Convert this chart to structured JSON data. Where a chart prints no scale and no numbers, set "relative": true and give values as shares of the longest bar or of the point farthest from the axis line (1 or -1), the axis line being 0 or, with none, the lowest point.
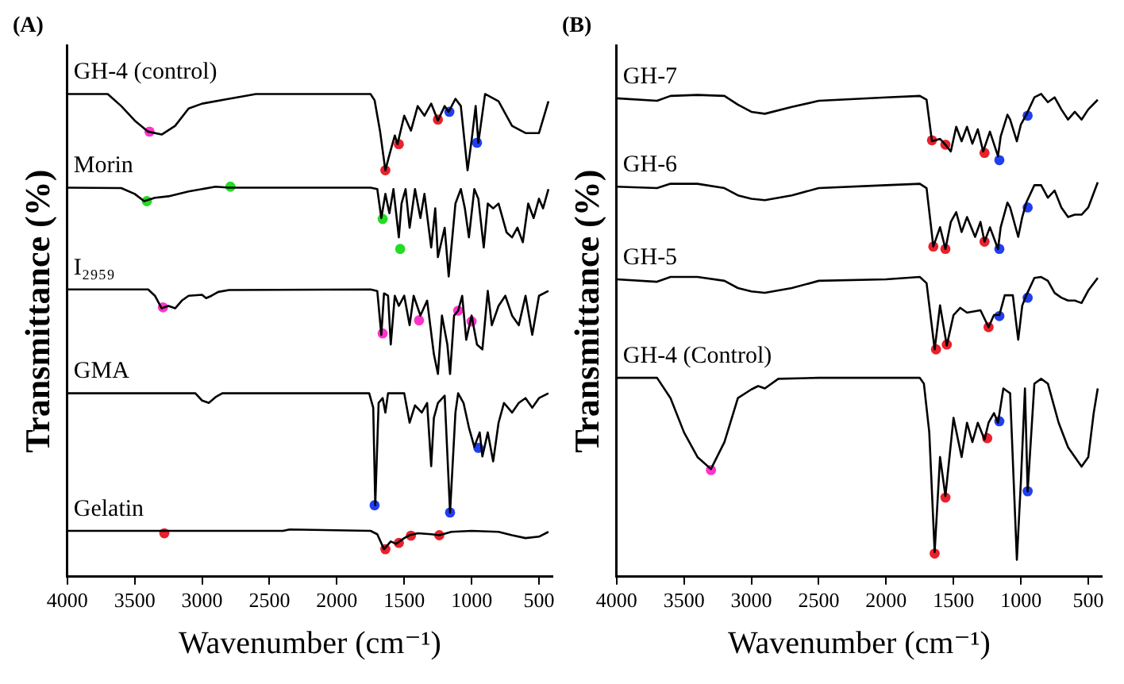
{
  "chart_data": [
    {
      "type": "line",
      "title": "(A)",
      "xlabel": "Wavenumber (cm⁻¹)",
      "ylabel": "Transmittance (%)",
      "relative": true,
      "xlim": [
        4000,
        400
      ],
      "xticks": [
        4000,
        3500,
        3000,
        2500,
        2000,
        1500,
        1000,
        500
      ],
      "tick_labels": "x",
      "legend": false,
      "grid": false,
      "series": [
        {
          "type": "line",
          "name": "GH-4 (control)",
          "color": "#000000",
          "x": [
            4000,
            3700,
            3600,
            3500,
            3400,
            3300,
            3200,
            3100,
            3000,
            2800,
            2600,
            1750,
            1720,
            1680,
            1640,
            1610,
            1570,
            1550,
            1500,
            1450,
            1400,
            1350,
            1300,
            1250,
            1200,
            1170,
            1120,
            1080,
            1030,
            1000,
            970,
            950,
            900,
            800,
            700,
            600,
            500,
            430
          ],
          "values": [
            1,
            1,
            0.975,
            0.945,
            0.922,
            0.916,
            0.934,
            0.97,
            0.98,
            0.99,
            1,
            1,
            0.987,
            0.924,
            0.842,
            0.874,
            0.914,
            0.896,
            0.955,
            0.924,
            0.975,
            0.955,
            0.98,
            0.945,
            0.975,
            0.963,
            0.99,
            0.975,
            0.842,
            0.904,
            0.975,
            0.899,
            1,
            0.985,
            0.934,
            0.919,
            0.919,
            0.985
          ]
        },
        {
          "type": "line",
          "name": "Morin",
          "color": "#000000",
          "x": [
            4000,
            3600,
            3500,
            3430,
            3350,
            3250,
            3100,
            2900,
            2800,
            2000,
            1750,
            1700,
            1670,
            1640,
            1610,
            1580,
            1540,
            1520,
            1490,
            1460,
            1420,
            1380,
            1350,
            1300,
            1270,
            1250,
            1200,
            1170,
            1120,
            1080,
            1050,
            1020,
            980,
            950,
            910,
            880,
            840,
            800,
            740,
            700,
            660,
            620,
            580,
            540,
            500,
            470,
            430
          ],
          "values": [
            0.806,
            0.805,
            0.793,
            0.778,
            0.785,
            0.788,
            0.798,
            0.808,
            0.806,
            0.806,
            0.806,
            0.803,
            0.743,
            0.793,
            0.753,
            0.803,
            0.703,
            0.773,
            0.803,
            0.723,
            0.803,
            0.743,
            0.793,
            0.682,
            0.763,
            0.662,
            0.723,
            0.622,
            0.773,
            0.803,
            0.763,
            0.703,
            0.803,
            0.783,
            0.682,
            0.773,
            0.763,
            0.773,
            0.713,
            0.703,
            0.723,
            0.693,
            0.773,
            0.743,
            0.783,
            0.763,
            0.803
          ]
        },
        {
          "type": "line",
          "name": "I₂₉₅₉",
          "color": "#000000",
          "x": [
            4000,
            3400,
            3350,
            3300,
            3250,
            3200,
            3150,
            3100,
            3000,
            2970,
            2930,
            2880,
            2800,
            1750,
            1700,
            1670,
            1650,
            1620,
            1600,
            1570,
            1540,
            1500,
            1460,
            1430,
            1380,
            1330,
            1280,
            1250,
            1220,
            1180,
            1160,
            1130,
            1100,
            1070,
            1040,
            1000,
            960,
            920,
            880,
            850,
            800,
            750,
            700,
            650,
            600,
            550,
            500,
            430
          ],
          "values": [
            0.595,
            0.595,
            0.582,
            0.556,
            0.561,
            0.556,
            0.572,
            0.582,
            0.584,
            0.577,
            0.582,
            0.59,
            0.594,
            0.595,
            0.592,
            0.501,
            0.587,
            0.582,
            0.481,
            0.582,
            0.561,
            0.582,
            0.521,
            0.582,
            0.541,
            0.572,
            0.461,
            0.42,
            0.541,
            0.481,
            0.42,
            0.541,
            0.551,
            0.582,
            0.491,
            0.541,
            0.481,
            0.471,
            0.592,
            0.521,
            0.561,
            0.582,
            0.541,
            0.521,
            0.582,
            0.501,
            0.582,
            0.592
          ]
        },
        {
          "type": "line",
          "name": "GMA",
          "color": "#000000",
          "x": [
            4000,
            3050,
            3000,
            2950,
            2900,
            2850,
            1760,
            1730,
            1715,
            1690,
            1660,
            1640,
            1620,
            1500,
            1460,
            1420,
            1370,
            1330,
            1300,
            1280,
            1250,
            1200,
            1160,
            1120,
            1100,
            1060,
            1020,
            980,
            940,
            920,
            880,
            840,
            800,
            760,
            700,
            650,
            600,
            550,
            500,
            430
          ],
          "values": [
            0.38,
            0.38,
            0.365,
            0.36,
            0.372,
            0.38,
            0.38,
            0.35,
            0.148,
            0.36,
            0.37,
            0.34,
            0.38,
            0.38,
            0.319,
            0.355,
            0.34,
            0.36,
            0.229,
            0.329,
            0.36,
            0.375,
            0.133,
            0.34,
            0.38,
            0.36,
            0.309,
            0.269,
            0.299,
            0.249,
            0.299,
            0.239,
            0.319,
            0.36,
            0.34,
            0.36,
            0.37,
            0.35,
            0.37,
            0.38
          ]
        },
        {
          "type": "line",
          "name": "Gelatin",
          "color": "#000000",
          "x": [
            4000,
            2400,
            2350,
            1750,
            1700,
            1650,
            1600,
            1560,
            1500,
            1460,
            1400,
            1300,
            1240,
            1150,
            1000,
            800,
            700,
            600,
            500,
            430
          ],
          "values": [
            0.095,
            0.095,
            0.098,
            0.095,
            0.088,
            0.057,
            0.073,
            0.068,
            0.08,
            0.086,
            0.09,
            0.088,
            0.086,
            0.093,
            0.095,
            0.093,
            0.086,
            0.08,
            0.083,
            0.093
          ]
        },
        {
          "type": "scatter",
          "marker": "circle",
          "color": "#ff33cc",
          "x": [
            3390,
            3290,
            1660,
            1390,
            1100,
            1000
          ],
          "values": [
            0.922,
            0.558,
            0.504,
            0.531,
            0.551,
            0.529
          ]
        },
        {
          "type": "scatter",
          "marker": "circle",
          "color": "#e8212b",
          "x": [
            1640,
            1540,
            1250,
            3280,
            1640,
            1540,
            1450,
            1240
          ],
          "values": [
            0.842,
            0.896,
            0.947,
            0.09,
            0.057,
            0.07,
            0.085,
            0.086
          ]
        },
        {
          "type": "scatter",
          "marker": "circle",
          "color": "#1f3ff0",
          "x": [
            1165,
            960,
            1720,
            1160,
            950
          ],
          "values": [
            0.963,
            0.899,
            0.148,
            0.133,
            0.267
          ]
        },
        {
          "type": "scatter",
          "marker": "circle",
          "color": "#22dd22",
          "x": [
            3410,
            2790,
            1660,
            1530
          ],
          "values": [
            0.778,
            0.808,
            0.741,
            0.679
          ]
        }
      ]
    },
    {
      "type": "line",
      "title": "(B)",
      "xlabel": "Wavenumber (cm⁻¹)",
      "ylabel": "Transmittance (%)",
      "relative": true,
      "xlim": [
        4000,
        400
      ],
      "xticks": [
        4000,
        3500,
        3000,
        2500,
        2000,
        1500,
        1000,
        500
      ],
      "tick_labels": "x",
      "legend": false,
      "grid": false,
      "series": [
        {
          "type": "line",
          "name": "GH-7",
          "color": "#000000",
          "x": [
            4000,
            3700,
            3600,
            3400,
            3200,
            3100,
            3000,
            2900,
            2700,
            2500,
            2000,
            1750,
            1700,
            1660,
            1600,
            1560,
            1520,
            1480,
            1440,
            1400,
            1360,
            1320,
            1280,
            1230,
            1170,
            1150,
            1100,
            1080,
            1030,
            1000,
            960,
            900,
            850,
            800,
            750,
            700,
            650,
            600,
            550,
            500,
            430
          ],
          "values": [
            0.991,
            0.986,
            0.996,
            0.998,
            0.996,
            0.978,
            0.963,
            0.959,
            0.973,
            0.986,
            0.993,
            0.996,
            0.988,
            0.902,
            0.907,
            0.895,
            0.881,
            0.932,
            0.902,
            0.932,
            0.897,
            0.927,
            0.881,
            0.922,
            0.871,
            0.912,
            0.957,
            0.947,
            0.902,
            0.937,
            0.957,
            0.993,
            1,
            0.983,
            0.993,
            0.968,
            0.947,
            0.963,
            0.947,
            0.968,
            0.988
          ]
        },
        {
          "type": "line",
          "name": "GH-6",
          "color": "#000000",
          "x": [
            4000,
            3700,
            3600,
            3400,
            3200,
            3100,
            3000,
            2900,
            2700,
            2500,
            2000,
            1750,
            1700,
            1650,
            1600,
            1560,
            1520,
            1480,
            1440,
            1400,
            1340,
            1300,
            1270,
            1230,
            1170,
            1150,
            1100,
            1080,
            1020,
            990,
            960,
            900,
            850,
            800,
            750,
            700,
            650,
            600,
            550,
            500,
            430
          ],
          "values": [
            0.808,
            0.805,
            0.814,
            0.814,
            0.805,
            0.79,
            0.783,
            0.78,
            0.79,
            0.805,
            0.811,
            0.814,
            0.805,
            0.684,
            0.724,
            0.679,
            0.735,
            0.755,
            0.714,
            0.745,
            0.704,
            0.735,
            0.694,
            0.724,
            0.679,
            0.724,
            0.775,
            0.765,
            0.704,
            0.745,
            0.775,
            0.811,
            0.811,
            0.785,
            0.8,
            0.765,
            0.745,
            0.75,
            0.75,
            0.765,
            0.817
          ]
        },
        {
          "type": "line",
          "name": "GH-5",
          "color": "#000000",
          "x": [
            4000,
            3700,
            3600,
            3400,
            3200,
            3100,
            3000,
            2900,
            2700,
            2500,
            2000,
            1750,
            1700,
            1640,
            1600,
            1550,
            1500,
            1450,
            1400,
            1300,
            1240,
            1200,
            1160,
            1120,
            1060,
            1020,
            990,
            960,
            900,
            850,
            800,
            750,
            700,
            650,
            600,
            550,
            500,
            430
          ],
          "values": [
            0.616,
            0.611,
            0.621,
            0.621,
            0.613,
            0.598,
            0.591,
            0.588,
            0.598,
            0.613,
            0.616,
            0.621,
            0.608,
            0.471,
            0.562,
            0.479,
            0.542,
            0.557,
            0.547,
            0.552,
            0.517,
            0.542,
            0.542,
            0.583,
            0.583,
            0.491,
            0.562,
            0.583,
            0.619,
            0.621,
            0.613,
            0.588,
            0.578,
            0.572,
            0.572,
            0.567,
            0.593,
            0.619
          ]
        },
        {
          "type": "line",
          "name": "GH-4 (Control)",
          "color": "#000000",
          "x": [
            4000,
            3700,
            3600,
            3500,
            3400,
            3300,
            3200,
            3100,
            3000,
            2950,
            2900,
            2800,
            2500,
            1750,
            1720,
            1680,
            1640,
            1600,
            1560,
            1500,
            1440,
            1400,
            1360,
            1320,
            1270,
            1240,
            1200,
            1170,
            1130,
            1080,
            1030,
            1000,
            970,
            950,
            900,
            850,
            800,
            720,
            650,
            550,
            500,
            460,
            430
          ],
          "values": [
            0.412,
            0.412,
            0.37,
            0.299,
            0.248,
            0.223,
            0.279,
            0.37,
            0.388,
            0.395,
            0.39,
            0.41,
            0.412,
            0.412,
            0.4,
            0.299,
            0.051,
            0.248,
            0.167,
            0.329,
            0.248,
            0.319,
            0.279,
            0.319,
            0.284,
            0.319,
            0.339,
            0.319,
            0.39,
            0.38,
            0.035,
            0.198,
            0.39,
            0.177,
            0.4,
            0.41,
            0.4,
            0.319,
            0.268,
            0.228,
            0.248,
            0.339,
            0.39
          ]
        },
        {
          "type": "scatter",
          "marker": "circle",
          "color": "#ff33cc",
          "x": [
            3300
          ],
          "values": [
            0.221
          ]
        },
        {
          "type": "scatter",
          "marker": "circle",
          "color": "#e8212b",
          "x": [
            1660,
            1560,
            1270,
            1650,
            1560,
            1270,
            1630,
            1550,
            1240,
            1640,
            1560,
            1250
          ],
          "values": [
            0.904,
            0.895,
            0.878,
            0.684,
            0.679,
            0.694,
            0.471,
            0.481,
            0.517,
            0.048,
            0.164,
            0.287
          ]
        },
        {
          "type": "scatter",
          "marker": "circle",
          "color": "#1f3ff0",
          "x": [
            1160,
            950,
            1160,
            950,
            1160,
            950,
            1160,
            950
          ],
          "values": [
            0.863,
            0.955,
            0.679,
            0.765,
            0.54,
            0.578,
            0.322,
            0.177
          ]
        }
      ]
    }
  ]
}
